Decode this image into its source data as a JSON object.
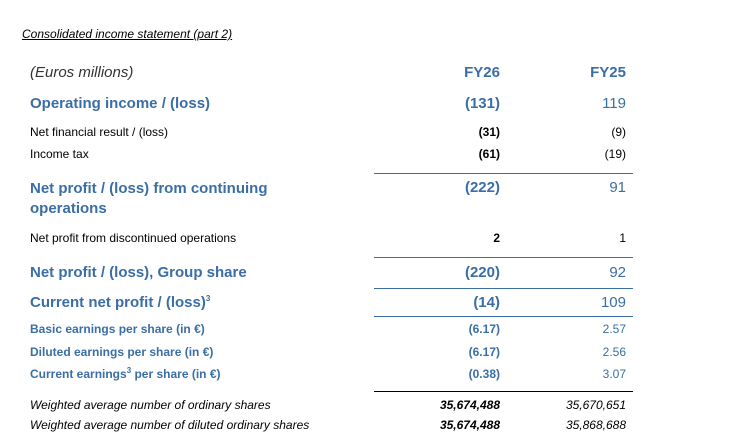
{
  "caption": "Consolidated income statement (part 2)",
  "header": {
    "unit": "(Euros millions)",
    "col1": "FY26",
    "col2": "FY25"
  },
  "rows": [
    {
      "label": "Operating income / (loss)",
      "fy26": "(131)",
      "fy25": "119"
    },
    {
      "label": "Net financial result / (loss)",
      "fy26": "(31)",
      "fy25": "(9)"
    },
    {
      "label": "Income tax",
      "fy26": "(61)",
      "fy25": "(19)"
    },
    {
      "label": "Net profit / (loss) from continuing",
      "label2": "operations",
      "fy26": "(222)",
      "fy25": "91"
    },
    {
      "label": "Net profit from discontinued operations",
      "fy26": "2",
      "fy25": "1"
    },
    {
      "label": "Net profit / (loss), Group share",
      "fy26": "(220)",
      "fy25": "92"
    },
    {
      "label": "Current net profit / (loss)",
      "sup": "3",
      "fy26": "(14)",
      "fy25": "109"
    },
    {
      "label": "Basic earnings per share (in €)",
      "fy26": "(6.17)",
      "fy25": "2.57"
    },
    {
      "label": "Diluted earnings per share (in €)",
      "fy26": "(6.17)",
      "fy25": "2.56"
    },
    {
      "label": "Current earnings",
      "sup": "3",
      "label_tail": " per share (in €)",
      "fy26": "(0.38)",
      "fy25": "3.07"
    },
    {
      "label": "Weighted average number of ordinary shares",
      "fy26": "35,674,488",
      "fy25": "35,670,651"
    },
    {
      "label": "Weighted average number of diluted ordinary shares",
      "fy26": "35,674,488",
      "fy25": "35,868,688"
    }
  ]
}
